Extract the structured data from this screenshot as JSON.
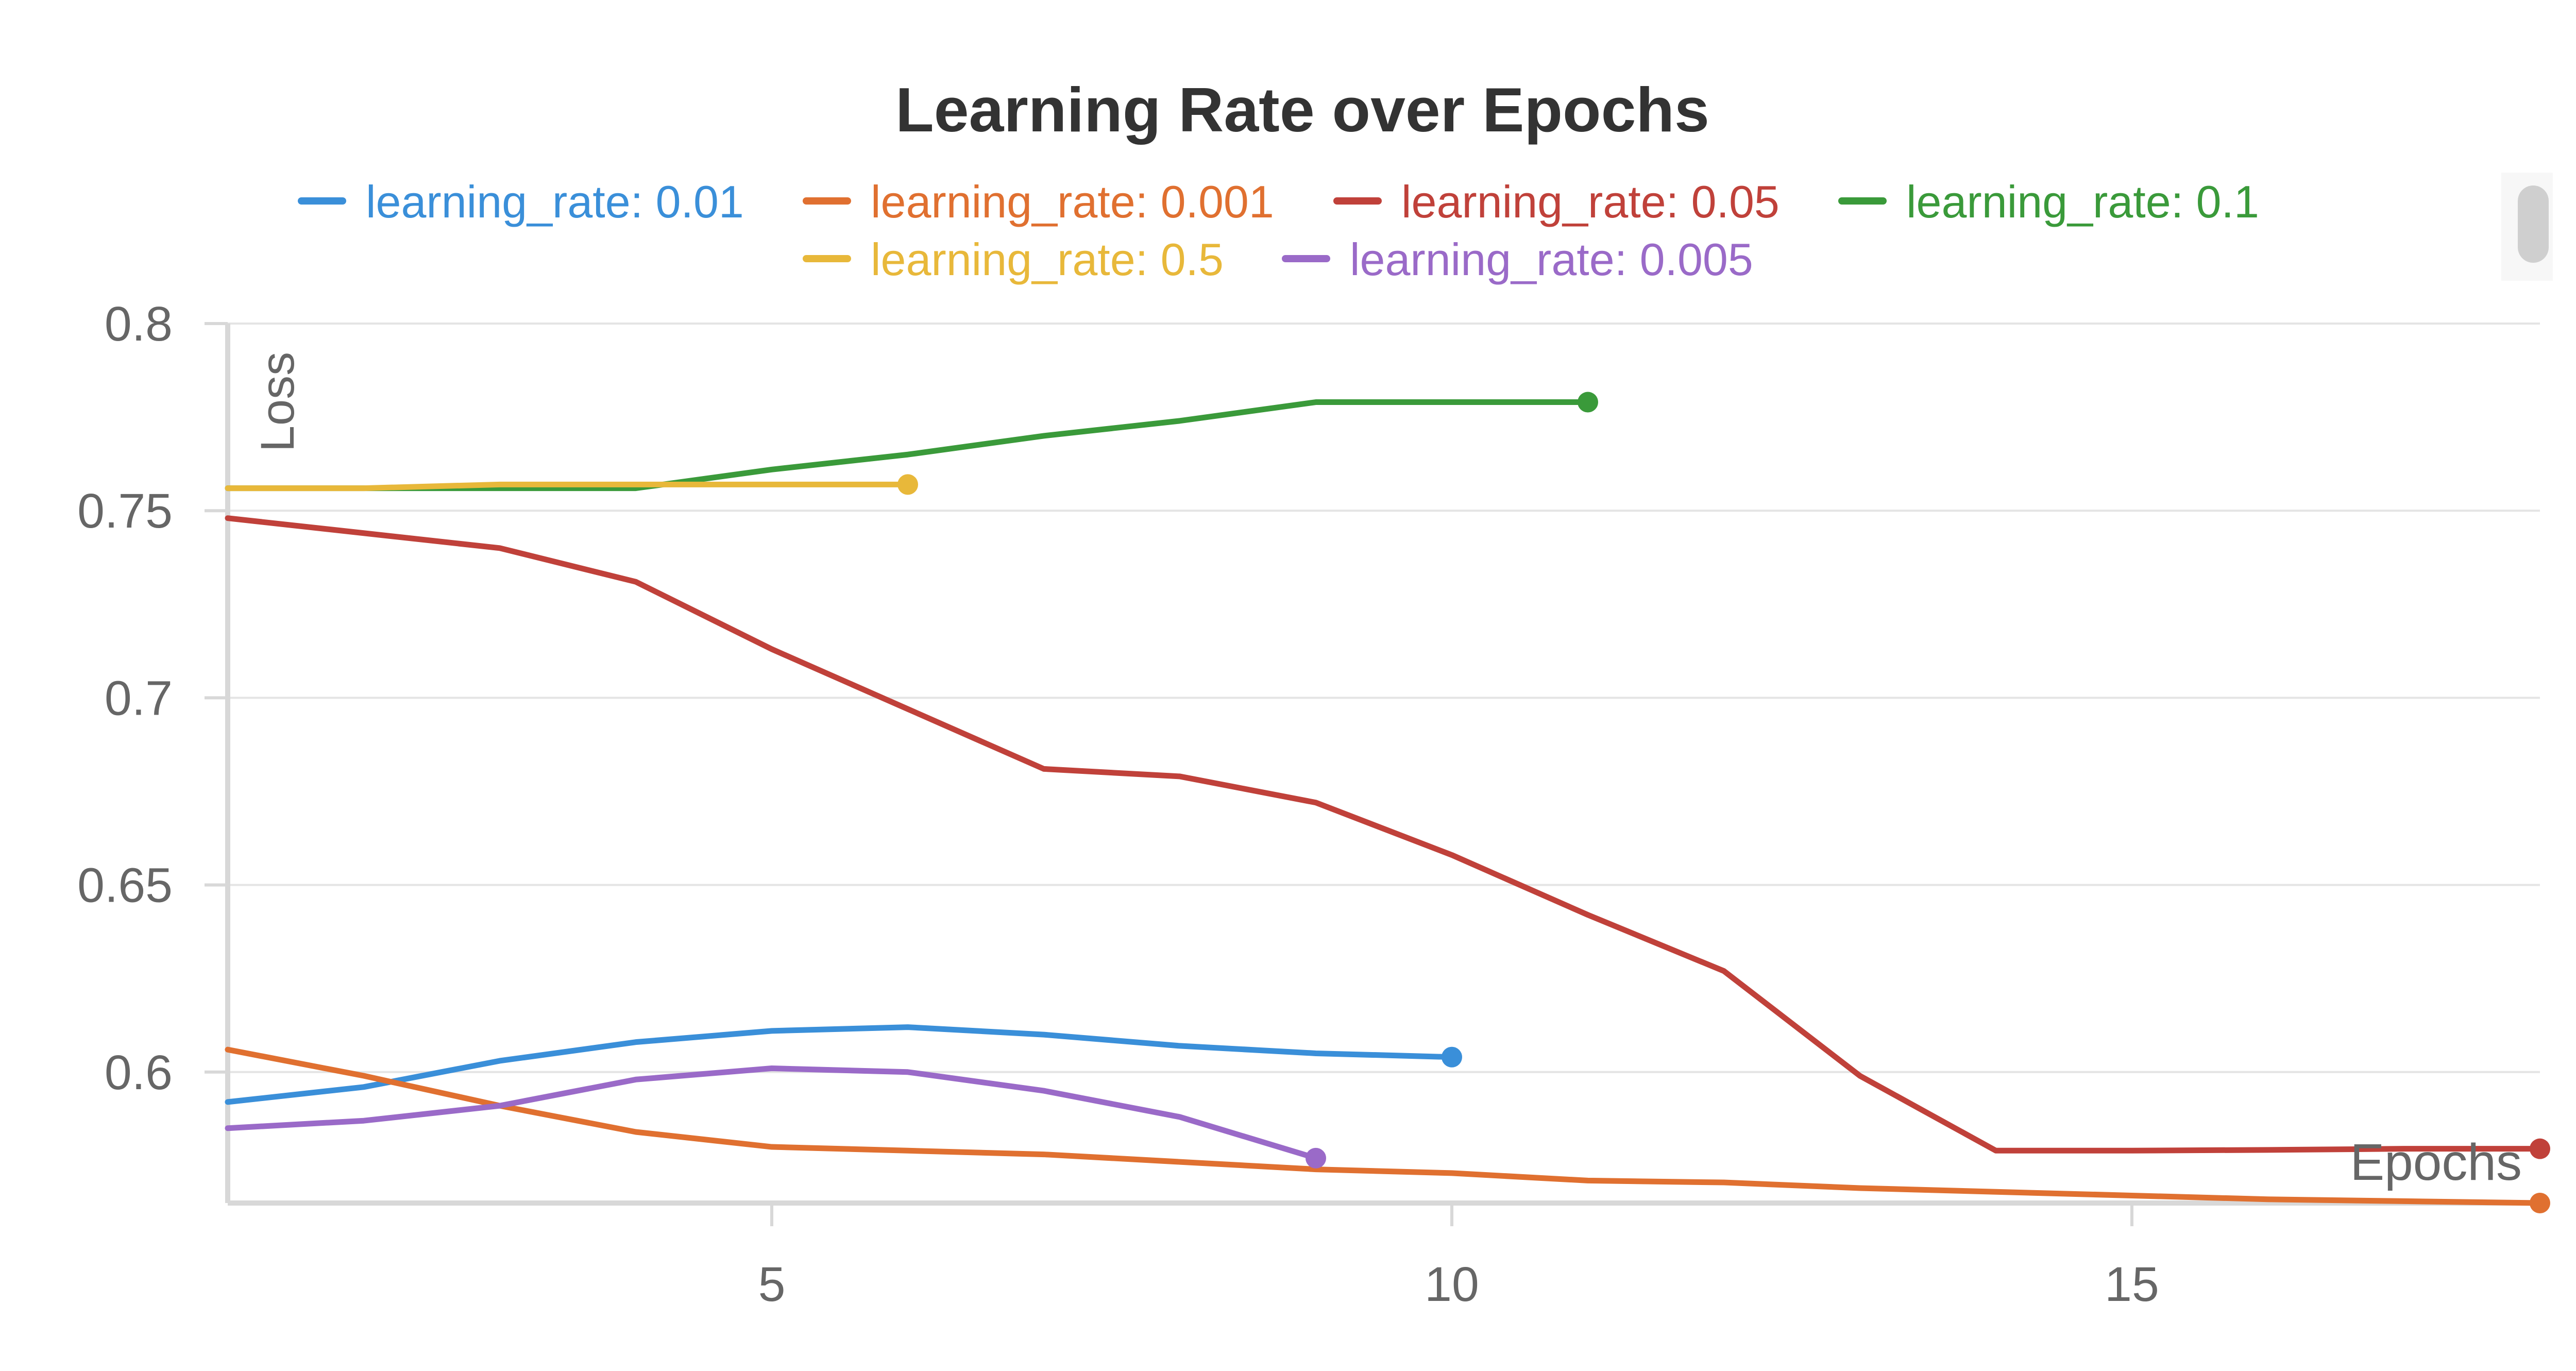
{
  "chart_data": {
    "type": "line",
    "title": "Learning Rate over Epochs",
    "xlabel": "Epochs",
    "ylabel": "Loss",
    "xlim": [
      1,
      18
    ],
    "ylim": [
      0.565,
      0.8
    ],
    "xticks": [
      5,
      10,
      15
    ],
    "xtick_labels": [
      "5",
      "10",
      "15"
    ],
    "yticks": [
      0.6,
      0.65,
      0.7,
      0.75,
      0.8
    ],
    "ytick_labels": [
      "0.6",
      "0.65",
      "0.7",
      "0.75",
      "0.8"
    ],
    "grid": true,
    "legend_position": "top",
    "series": [
      {
        "name": "learning_rate: 0.01",
        "color": "#3a8fd9",
        "x": [
          1,
          2,
          3,
          4,
          5,
          6,
          7,
          8,
          9,
          10
        ],
        "y": [
          0.592,
          0.596,
          0.603,
          0.608,
          0.611,
          0.612,
          0.61,
          0.607,
          0.605,
          0.604
        ]
      },
      {
        "name": "learning_rate: 0.001",
        "color": "#e07030",
        "x": [
          1,
          2,
          3,
          4,
          5,
          6,
          7,
          8,
          9,
          10,
          11,
          12,
          13,
          14,
          15,
          16,
          17,
          18
        ],
        "y": [
          0.606,
          0.599,
          0.591,
          0.584,
          0.58,
          0.579,
          0.578,
          0.576,
          0.574,
          0.573,
          0.571,
          0.5705,
          0.569,
          0.568,
          0.567,
          0.566,
          0.5655,
          0.565
        ]
      },
      {
        "name": "learning_rate: 0.05",
        "color": "#c0413a",
        "x": [
          1,
          2,
          3,
          4,
          5,
          6,
          7,
          8,
          9,
          10,
          11,
          12,
          13,
          14,
          15,
          16,
          17,
          18
        ],
        "y": [
          0.748,
          0.744,
          0.74,
          0.731,
          0.713,
          0.697,
          0.681,
          0.679,
          0.672,
          0.658,
          0.642,
          0.627,
          0.599,
          0.579,
          0.579,
          0.5792,
          0.5795,
          0.5795
        ]
      },
      {
        "name": "learning_rate: 0.1",
        "color": "#3a9a3a",
        "x": [
          1,
          2,
          3,
          4,
          5,
          6,
          7,
          8,
          9,
          10,
          11
        ],
        "y": [
          0.756,
          0.756,
          0.756,
          0.756,
          0.761,
          0.765,
          0.77,
          0.774,
          0.779,
          0.779,
          0.779
        ]
      },
      {
        "name": "learning_rate: 0.5",
        "color": "#e8b83a",
        "x": [
          1,
          2,
          3,
          4,
          5,
          6
        ],
        "y": [
          0.756,
          0.756,
          0.757,
          0.757,
          0.757,
          0.757
        ]
      },
      {
        "name": "learning_rate: 0.005",
        "color": "#9a6ac8",
        "x": [
          1,
          2,
          3,
          4,
          5,
          6,
          7,
          8,
          9
        ],
        "y": [
          0.585,
          0.587,
          0.591,
          0.598,
          0.601,
          0.6,
          0.595,
          0.588,
          0.577
        ]
      }
    ]
  },
  "colors": {
    "title": "#333333",
    "axis_text": "#666666",
    "grid": "#e4e4e4",
    "axis_line": "#d8d8d8",
    "scrollbar_thumb": "#cfcfcf"
  }
}
